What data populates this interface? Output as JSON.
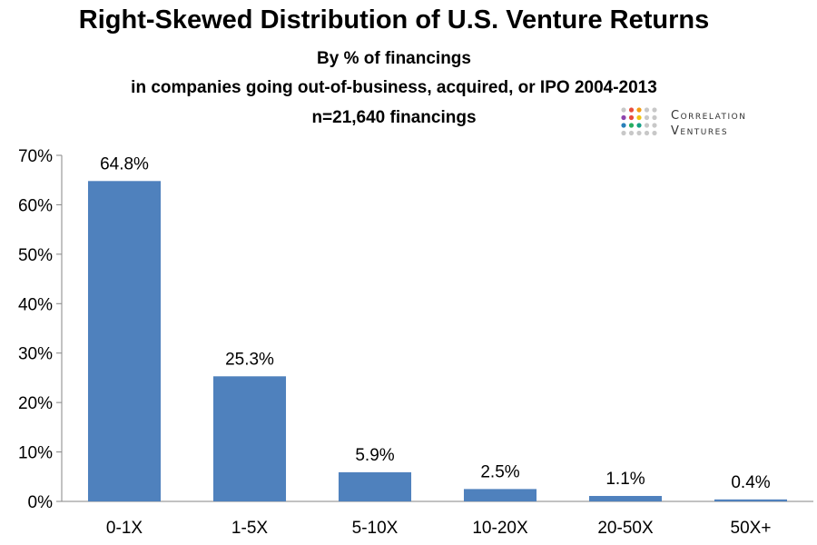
{
  "header": {
    "title": "Right-Skewed Distribution of U.S. Venture Returns",
    "subtitle_line1": "By % of financings",
    "subtitle_line2": "in companies going out-of-business, acquired, or IPO 2004-2013",
    "subtitle_line3": "n=21,640 financings"
  },
  "logo": {
    "line1": "Correlation",
    "line2": "Ventures",
    "dot_colors": [
      "#c8c8c8",
      "#e84d3c",
      "#f39c12",
      "#c8c8c8",
      "#c8c8c8",
      "#8e44ad",
      "#e74c3c",
      "#f1c40f",
      "#c8c8c8",
      "#c8c8c8",
      "#2980b9",
      "#27ae60",
      "#16a085",
      "#c8c8c8",
      "#c8c8c8",
      "#c8c8c8",
      "#c8c8c8",
      "#c8c8c8",
      "#c8c8c8",
      "#c8c8c8"
    ]
  },
  "chart_data": {
    "type": "bar",
    "categories": [
      "0-1X",
      "1-5X",
      "5-10X",
      "10-20X",
      "20-50X",
      "50X+"
    ],
    "values": [
      64.8,
      25.3,
      5.9,
      2.5,
      1.1,
      0.4
    ],
    "data_labels": [
      "64.8%",
      "25.3%",
      "5.9%",
      "2.5%",
      "1.1%",
      "0.4%"
    ],
    "y_ticks": [
      0,
      10,
      20,
      30,
      40,
      50,
      60,
      70
    ],
    "y_tick_labels": [
      "0%",
      "10%",
      "20%",
      "30%",
      "40%",
      "50%",
      "60%",
      "70%"
    ],
    "ylim": [
      0,
      70
    ],
    "bar_color": "#4f81bd",
    "grid": false,
    "legend": "none",
    "xlabel": "",
    "ylabel": ""
  }
}
